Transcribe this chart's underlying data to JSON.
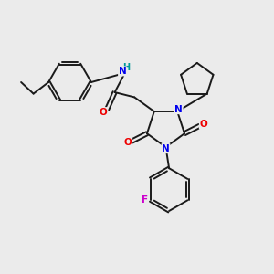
{
  "bg_color": "#ebebeb",
  "bond_color": "#1a1a1a",
  "atom_colors": {
    "N": "#0000ee",
    "O": "#ee0000",
    "F": "#cc00cc",
    "H": "#009999",
    "C": "#1a1a1a"
  },
  "bond_lw": 1.4,
  "figsize": [
    3.0,
    3.0
  ],
  "dpi": 100
}
